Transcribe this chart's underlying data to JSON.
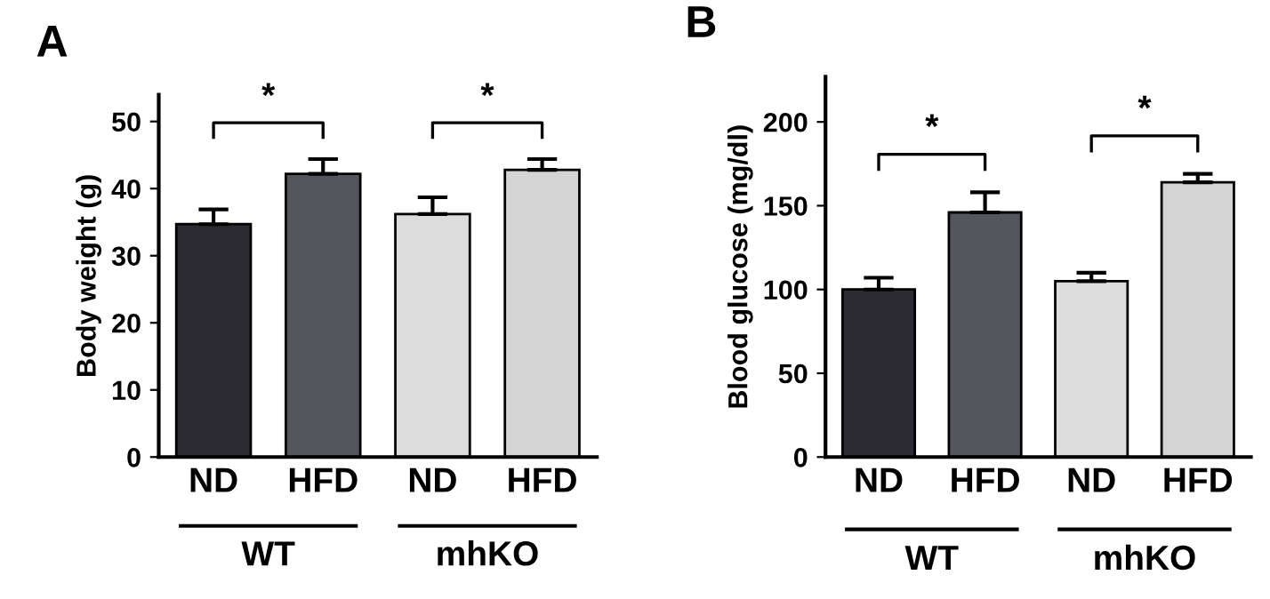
{
  "chart_data": [
    {
      "type": "bar",
      "title": "A",
      "ylabel": "Body weight (g)",
      "categories": [
        "ND",
        "HFD",
        "ND",
        "HFD"
      ],
      "values": [
        34.7,
        42.2,
        36.2,
        42.8
      ],
      "errors": [
        [
          34.7,
          36.9
        ],
        [
          42.2,
          44.4
        ],
        [
          36.2,
          38.7
        ],
        [
          42.8,
          44.4
        ]
      ],
      "colors": [
        "#2b2b31",
        "#55555c",
        "#dcdcdc",
        "#d4d4d4"
      ],
      "ylim": [
        0,
        54
      ],
      "yticks": [
        0,
        10,
        20,
        30,
        40,
        50
      ],
      "grid": false,
      "legend": false,
      "annotations": [
        "*",
        "*",
        "WT",
        "mhKO"
      ]
    },
    {
      "type": "bar",
      "title": "B",
      "ylabel": "Blood glucose (mg/dl)",
      "categories": [
        "ND",
        "HFD",
        "ND",
        "HFD"
      ],
      "values": [
        100,
        146,
        105,
        164
      ],
      "errors": [
        [
          100,
          107
        ],
        [
          146,
          158
        ],
        [
          105,
          110
        ],
        [
          164,
          169
        ]
      ],
      "colors": [
        "#2b2b31",
        "#55555c",
        "#dcdcdc",
        "#d4d4d4"
      ],
      "ylim": [
        0,
        227
      ],
      "yticks": [
        0,
        50,
        100,
        150,
        200
      ],
      "grid": false,
      "legend": false,
      "annotations": [
        "*",
        "*",
        "WT",
        "mhKO"
      ]
    }
  ]
}
